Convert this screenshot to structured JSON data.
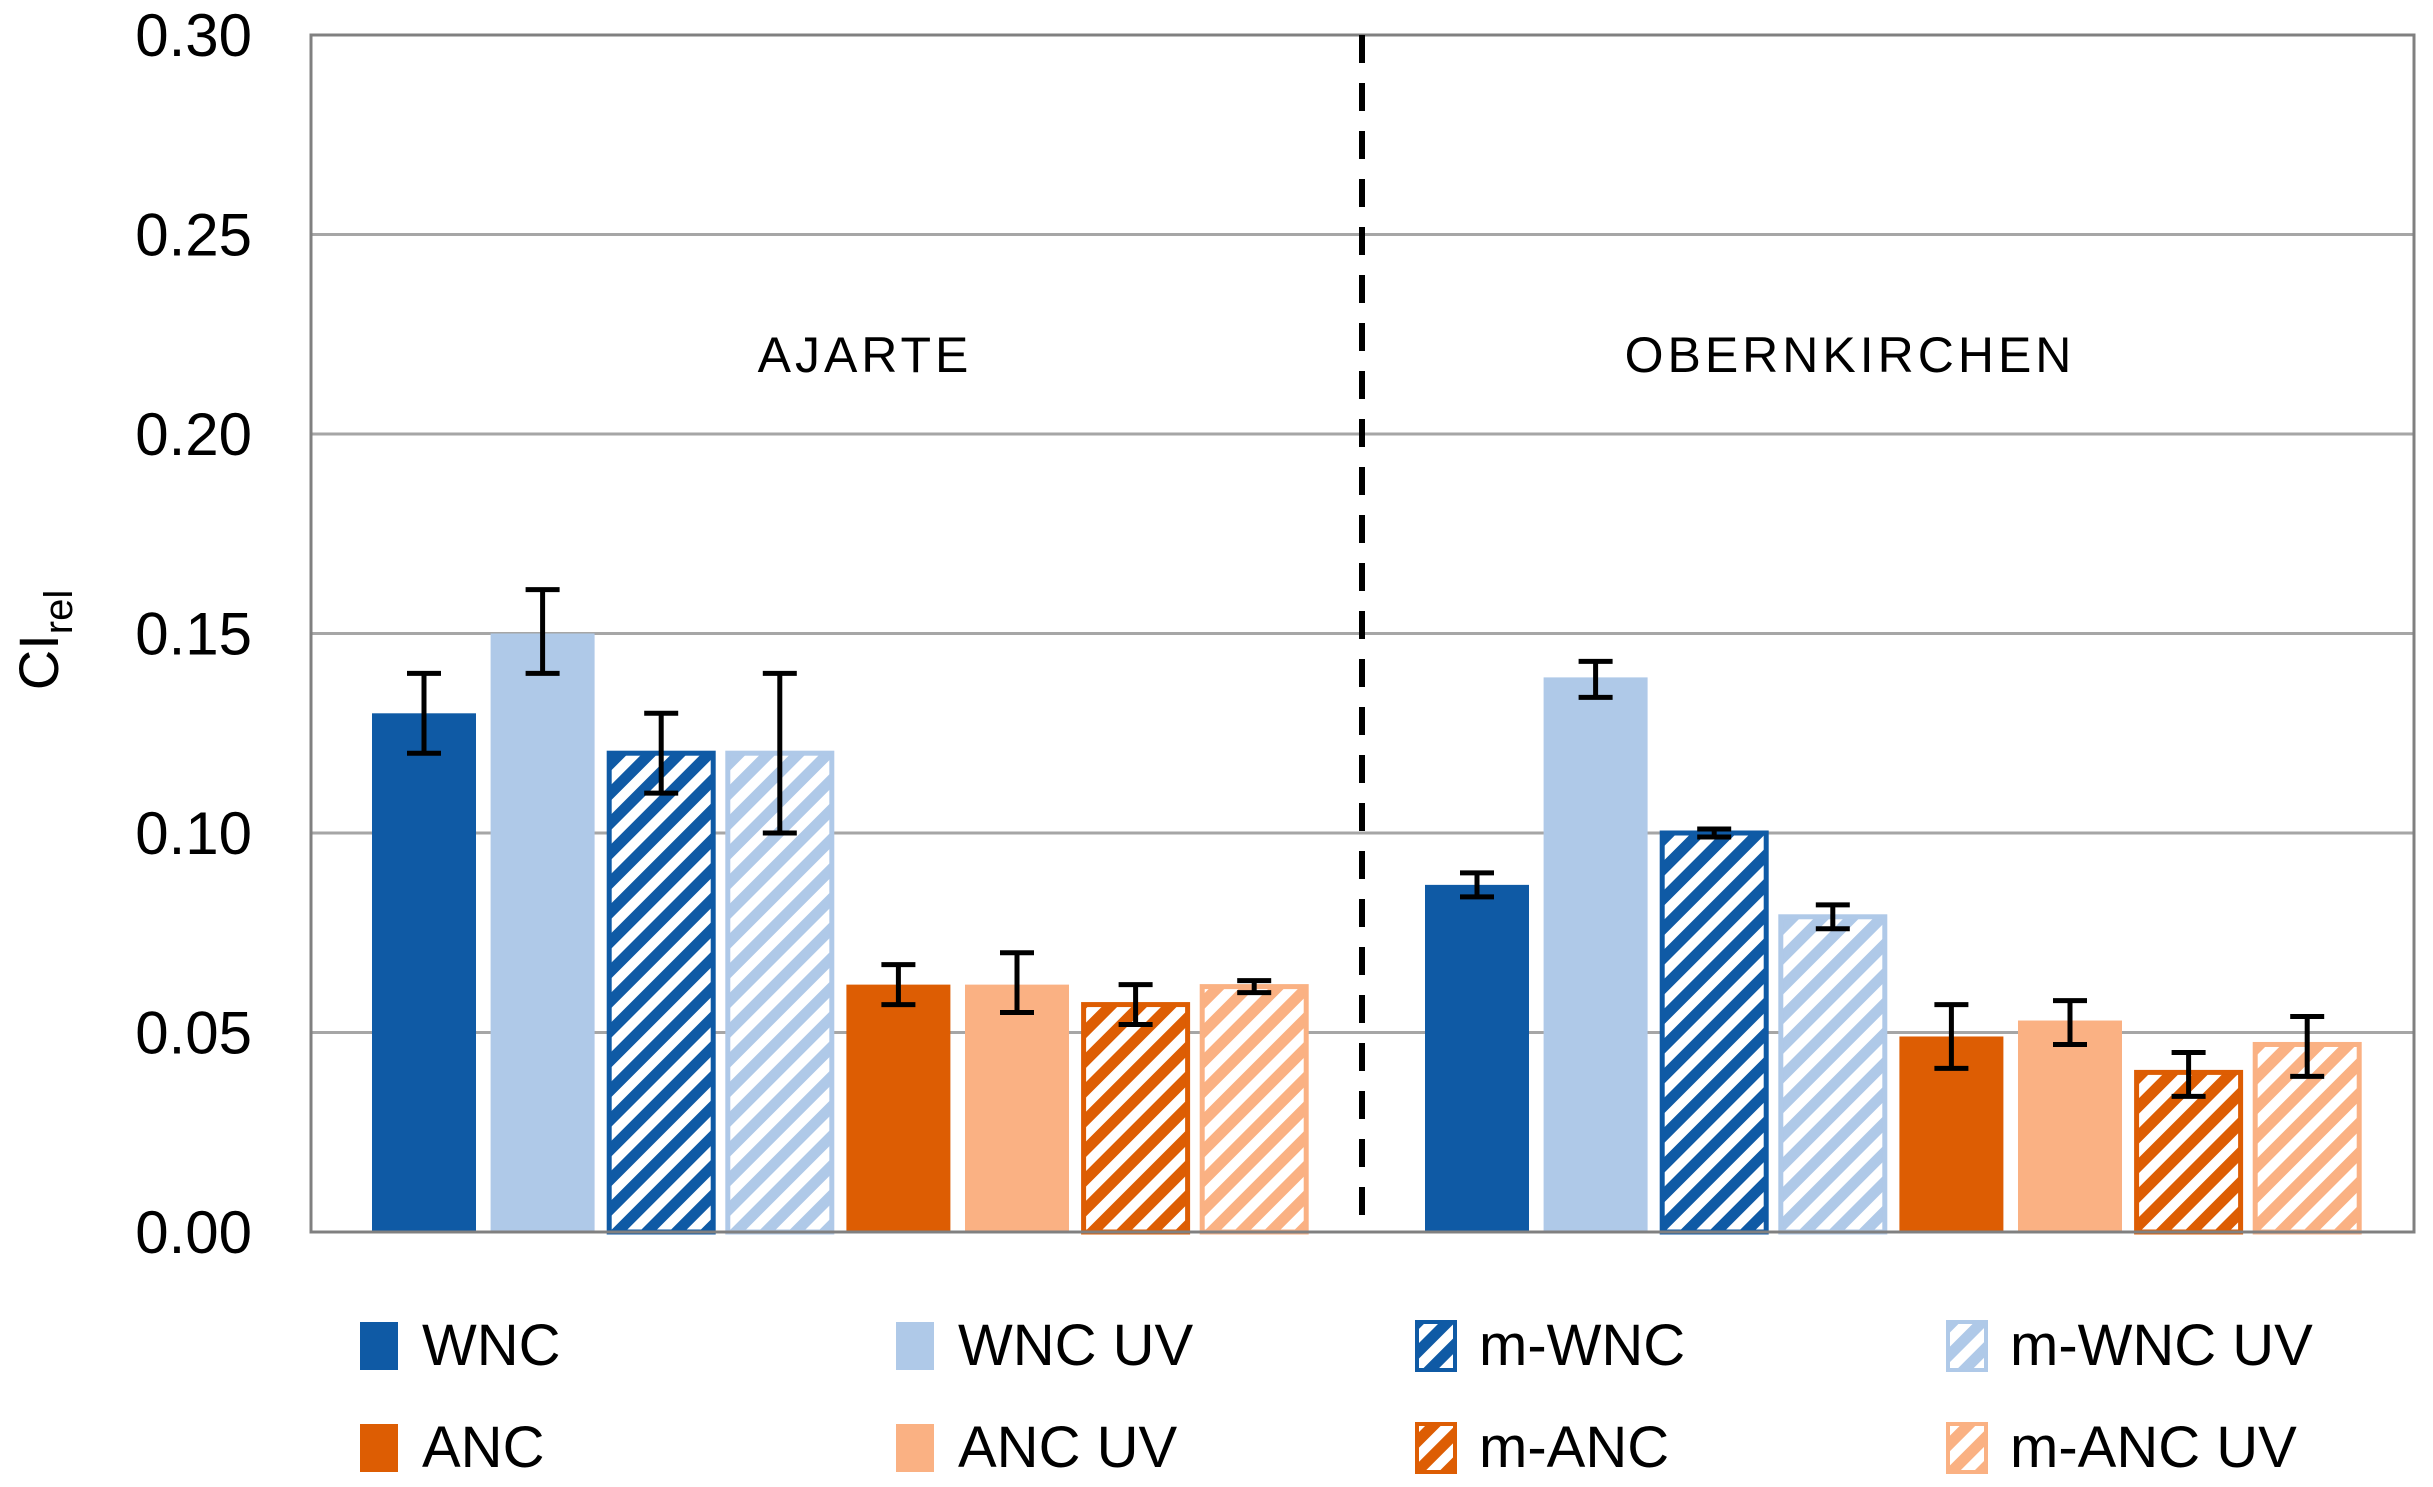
{
  "chart_data": {
    "type": "bar",
    "title": "",
    "ylabel": "CI",
    "ylabel_subscript": "rel",
    "xlabel": "",
    "ylim": [
      0.0,
      0.3
    ],
    "ytick_step": 0.05,
    "ytick_labels": [
      "0.00",
      "0.05",
      "0.10",
      "0.15",
      "0.20",
      "0.25",
      "0.30"
    ],
    "grid": true,
    "legend_position": "bottom",
    "group_divider": "dashed-vertical-line",
    "groups": [
      "AJARTE",
      "OBERNKIRCHEN"
    ],
    "series": [
      {
        "name": "WNC",
        "fill": "solid",
        "color_key": "dark_blue",
        "values": [
          0.13,
          0.087
        ],
        "err_low": [
          0.12,
          0.084
        ],
        "err_high": [
          0.14,
          0.09
        ]
      },
      {
        "name": "WNC UV",
        "fill": "solid",
        "color_key": "light_blue",
        "values": [
          0.15,
          0.139
        ],
        "err_low": [
          0.14,
          0.134
        ],
        "err_high": [
          0.161,
          0.143
        ]
      },
      {
        "name": "m-WNC",
        "fill": "hatch",
        "color_key": "dark_blue",
        "values": [
          0.12,
          0.1
        ],
        "err_low": [
          0.11,
          0.099
        ],
        "err_high": [
          0.13,
          0.101
        ]
      },
      {
        "name": "m-WNC UV",
        "fill": "hatch",
        "color_key": "light_blue",
        "values": [
          0.12,
          0.079
        ],
        "err_low": [
          0.1,
          0.076
        ],
        "err_high": [
          0.14,
          0.082
        ]
      },
      {
        "name": "ANC",
        "fill": "solid",
        "color_key": "dark_orange",
        "values": [
          0.062,
          0.049
        ],
        "err_low": [
          0.057,
          0.041
        ],
        "err_high": [
          0.067,
          0.057
        ]
      },
      {
        "name": "ANC UV",
        "fill": "solid",
        "color_key": "light_orange",
        "values": [
          0.062,
          0.053
        ],
        "err_low": [
          0.055,
          0.047
        ],
        "err_high": [
          0.07,
          0.058
        ]
      },
      {
        "name": "m-ANC",
        "fill": "hatch",
        "color_key": "dark_orange",
        "values": [
          0.057,
          0.04
        ],
        "err_low": [
          0.052,
          0.034
        ],
        "err_high": [
          0.062,
          0.045
        ]
      },
      {
        "name": "m-ANC UV",
        "fill": "hatch",
        "color_key": "light_orange",
        "values": [
          0.0615,
          0.047
        ],
        "err_low": [
          0.06,
          0.039
        ],
        "err_high": [
          0.063,
          0.054
        ]
      }
    ],
    "colors": {
      "dark_blue": "#0F5AA5",
      "light_blue": "#AFC9E8",
      "dark_orange": "#DD5D03",
      "light_orange": "#FAB183",
      "gridline": "#A6A6A6",
      "plot_border": "#808080",
      "error_bar": "#000000",
      "divider": "#000000",
      "text": "#000000"
    }
  }
}
